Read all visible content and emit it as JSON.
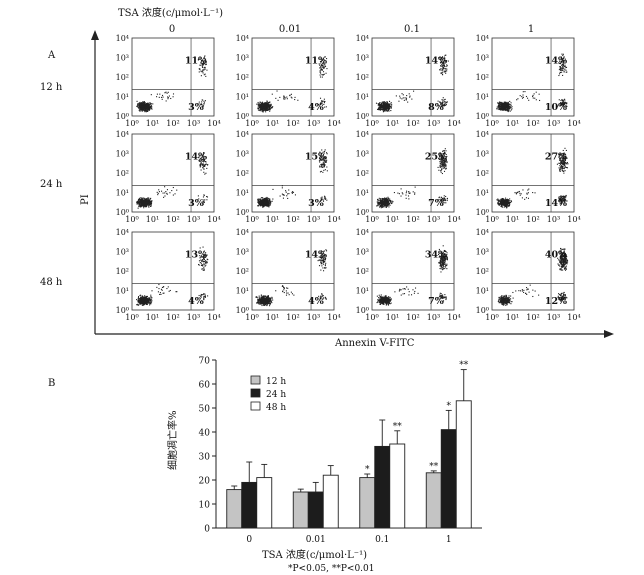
{
  "panel_a": {
    "label": "A",
    "header_title": "TSA 浓度(c/μmol·L⁻¹)",
    "y_axis_label": "PI",
    "x_axis_label": "Annexin V-FITC",
    "concentrations": [
      "0",
      "0.01",
      "0.1",
      "1"
    ],
    "times": [
      "12 h",
      "24 h",
      "48 h"
    ],
    "tick_labels": [
      "10⁰",
      "10¹",
      "10²",
      "10³",
      "10⁴"
    ],
    "quadrant_percentages": [
      [
        {
          "upper": "11%",
          "lower": "3%"
        },
        {
          "upper": "11%",
          "lower": "4%"
        },
        {
          "upper": "14%",
          "lower": "8%"
        },
        {
          "upper": "14%",
          "lower": "10%"
        }
      ],
      [
        {
          "upper": "14%",
          "lower": "3%"
        },
        {
          "upper": "15%",
          "lower": "3%"
        },
        {
          "upper": "25%",
          "lower": "7%"
        },
        {
          "upper": "27%",
          "lower": "14%"
        }
      ],
      [
        {
          "upper": "13%",
          "lower": "4%"
        },
        {
          "upper": "14%",
          "lower": "4%"
        },
        {
          "upper": "34%",
          "lower": "7%"
        },
        {
          "upper": "40%",
          "lower": "12%"
        }
      ]
    ]
  },
  "chart_data": {
    "type": "bar",
    "panel_label": "B",
    "categories": [
      "0",
      "0.01",
      "0.1",
      "1"
    ],
    "series": [
      {
        "name": "12 h",
        "color": "#c4c4c4",
        "values": [
          16,
          15,
          21,
          23
        ],
        "errors": [
          1.5,
          1.2,
          1.5,
          0.8
        ],
        "sig": [
          "",
          "",
          "*",
          "**"
        ]
      },
      {
        "name": "24 h",
        "color": "#1c1c1c",
        "values": [
          19,
          15,
          34,
          41
        ],
        "errors": [
          8.5,
          4,
          11,
          8
        ],
        "sig": [
          "",
          "",
          "",
          "*"
        ]
      },
      {
        "name": "48 h",
        "color": "#ffffff",
        "values": [
          21,
          22,
          35,
          53
        ],
        "errors": [
          5.5,
          4,
          5.5,
          13
        ],
        "sig": [
          "",
          "",
          "**",
          "**"
        ]
      }
    ],
    "ylabel": "细胞凋亡率%",
    "xlabel": "TSA 浓度(c/μmol·L⁻¹)",
    "ylim": [
      0,
      70
    ],
    "yticks": [
      0,
      10,
      20,
      30,
      40,
      50,
      60,
      70
    ],
    "legend_position": "top-left",
    "footnote": "*P<0.05, **P<0.01"
  }
}
